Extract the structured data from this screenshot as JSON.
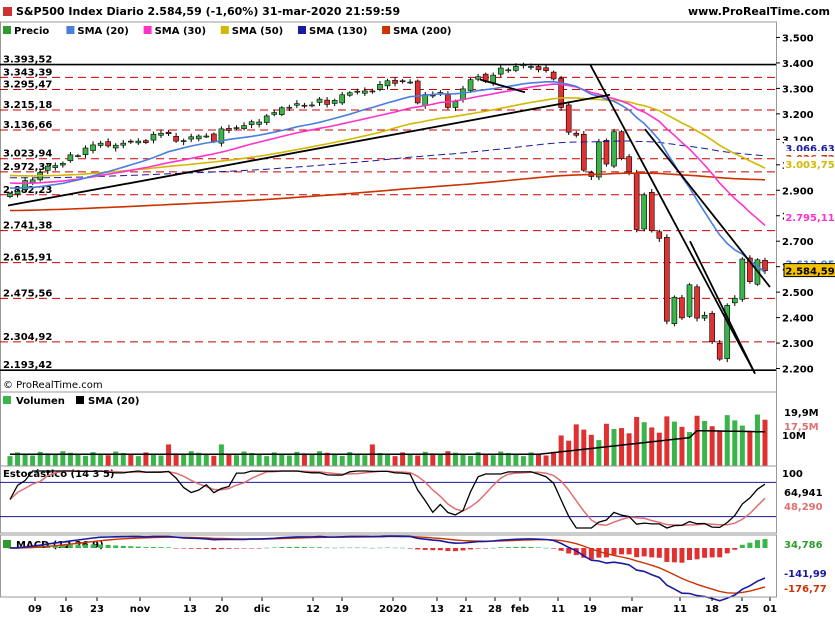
{
  "header": {
    "title": "S&P500 Index Diario 2.584,59 (-1,60%) 31-mar-2020 21:59:59",
    "site": "www.ProRealTime.com"
  },
  "legend": [
    {
      "label": "Precio",
      "color": "#2e9b2e"
    },
    {
      "label": "SMA (20)",
      "color": "#4a7fe0"
    },
    {
      "label": "SMA (30)",
      "color": "#ff33cc"
    },
    {
      "label": "SMA (50)",
      "color": "#d4b800"
    },
    {
      "label": "SMA (130)",
      "color": "#1a1aa0"
    },
    {
      "label": "SMA (200)",
      "color": "#cc3300"
    }
  ],
  "copyright": "© ProRealTime.com",
  "price_axis": {
    "ticks": [
      "3.500",
      "3.400",
      "3.300",
      "3.200",
      "3.100",
      "3.000",
      "2.900",
      "2.800",
      "2.700",
      "2.600",
      "2.500",
      "2.400",
      "2.300",
      "2.200"
    ],
    "values": [
      3500,
      3400,
      3300,
      3200,
      3100,
      3000,
      2900,
      2800,
      2700,
      2600,
      2500,
      2400,
      2300,
      2200
    ],
    "range": [
      2155,
      3545
    ]
  },
  "levels": {
    "values": [
      3393.52,
      3343.39,
      3295.47,
      3215.18,
      3136.66,
      3023.94,
      2972.37,
      2882.23,
      2741.38,
      2615.91,
      2475.56,
      2304.92,
      2193.42
    ],
    "labels": [
      "3.393,52",
      "3.343,39",
      "3.295,47",
      "3.215,18",
      "3.136,66",
      "3.023,94",
      "2.972,37",
      "2.882,23",
      "2.741,38",
      "2.615,91",
      "2.475,56",
      "2.304,92",
      "2.193,42"
    ]
  },
  "ma_tags": [
    {
      "label": "3.066,63",
      "color": "#1a1aa0",
      "value": 3066.63
    },
    {
      "label": "3.026,72",
      "color": "#cc3300",
      "value": 3026.72
    },
    {
      "label": "3.003,75",
      "color": "#d4b800",
      "value": 3003.75
    },
    {
      "label": "2.795,11",
      "color": "#ff33cc",
      "value": 2795.11
    },
    {
      "label": "2.612,95",
      "color": "#4a7fe0",
      "value": 2612.95
    },
    {
      "label": "2.584,59",
      "color": "#f2c200",
      "value": 2584.59
    }
  ],
  "volume": {
    "title": "Volumen",
    "sma_label": "SMA (20)",
    "ticks": [
      "10M"
    ],
    "tags": [
      {
        "label": "19,9M",
        "color": "#000"
      },
      {
        "label": "17,5M",
        "color": "#e07070"
      }
    ]
  },
  "stochastic": {
    "title": "Estocástico (14 3 5)",
    "ticks": [
      "100"
    ],
    "tags": [
      {
        "label": "64,941",
        "color": "#000"
      },
      {
        "label": "48,290",
        "color": "#e07070"
      }
    ]
  },
  "macd": {
    "title": "MACD (12 26 9)",
    "tags": [
      {
        "label": "34,786",
        "color": "#2e9b2e"
      },
      {
        "label": "-141,99",
        "color": "#1a1aa0"
      },
      {
        "label": "-176,77",
        "color": "#cc3300"
      }
    ]
  },
  "x_axis": [
    "09",
    "16",
    "23",
    "nov",
    "13",
    "20",
    "dic",
    "12",
    "19",
    "2020",
    "13",
    "21",
    "28",
    "feb",
    "11",
    "19",
    "mar",
    "11",
    "18",
    "25",
    "01"
  ],
  "chart_data": {
    "type": "candlestick",
    "closes_approx": [
      2887,
      2896,
      2938,
      2941,
      2970,
      2995,
      2997,
      3006,
      3039,
      3036,
      3066,
      3078,
      3085,
      3074,
      3077,
      3085,
      3092,
      3093,
      3087,
      3120,
      3124,
      3122,
      3093,
      3095,
      3110,
      3113,
      3113,
      3091,
      3141,
      3135,
      3146,
      3154,
      3169,
      3168,
      3192,
      3205,
      3224,
      3226,
      3240,
      3231,
      3235,
      3258,
      3237,
      3253,
      3275,
      3283,
      3289,
      3290,
      3288,
      3316,
      3330,
      3320,
      3329,
      3325,
      3243,
      3276,
      3273,
      3284,
      3225,
      3248,
      3298,
      3334,
      3346,
      3327,
      3352,
      3380,
      3373,
      3386,
      3393,
      3386,
      3373,
      3370,
      3337,
      3225,
      3128,
      3116,
      2979,
      2954,
      3090,
      3003,
      3130,
      3024,
      2972,
      2746,
      2882,
      2741,
      2711,
      2386,
      2480,
      2399,
      2529,
      2398,
      2409,
      2305,
      2237,
      2448,
      2476,
      2630,
      2541,
      2627,
      2584
    ]
  }
}
